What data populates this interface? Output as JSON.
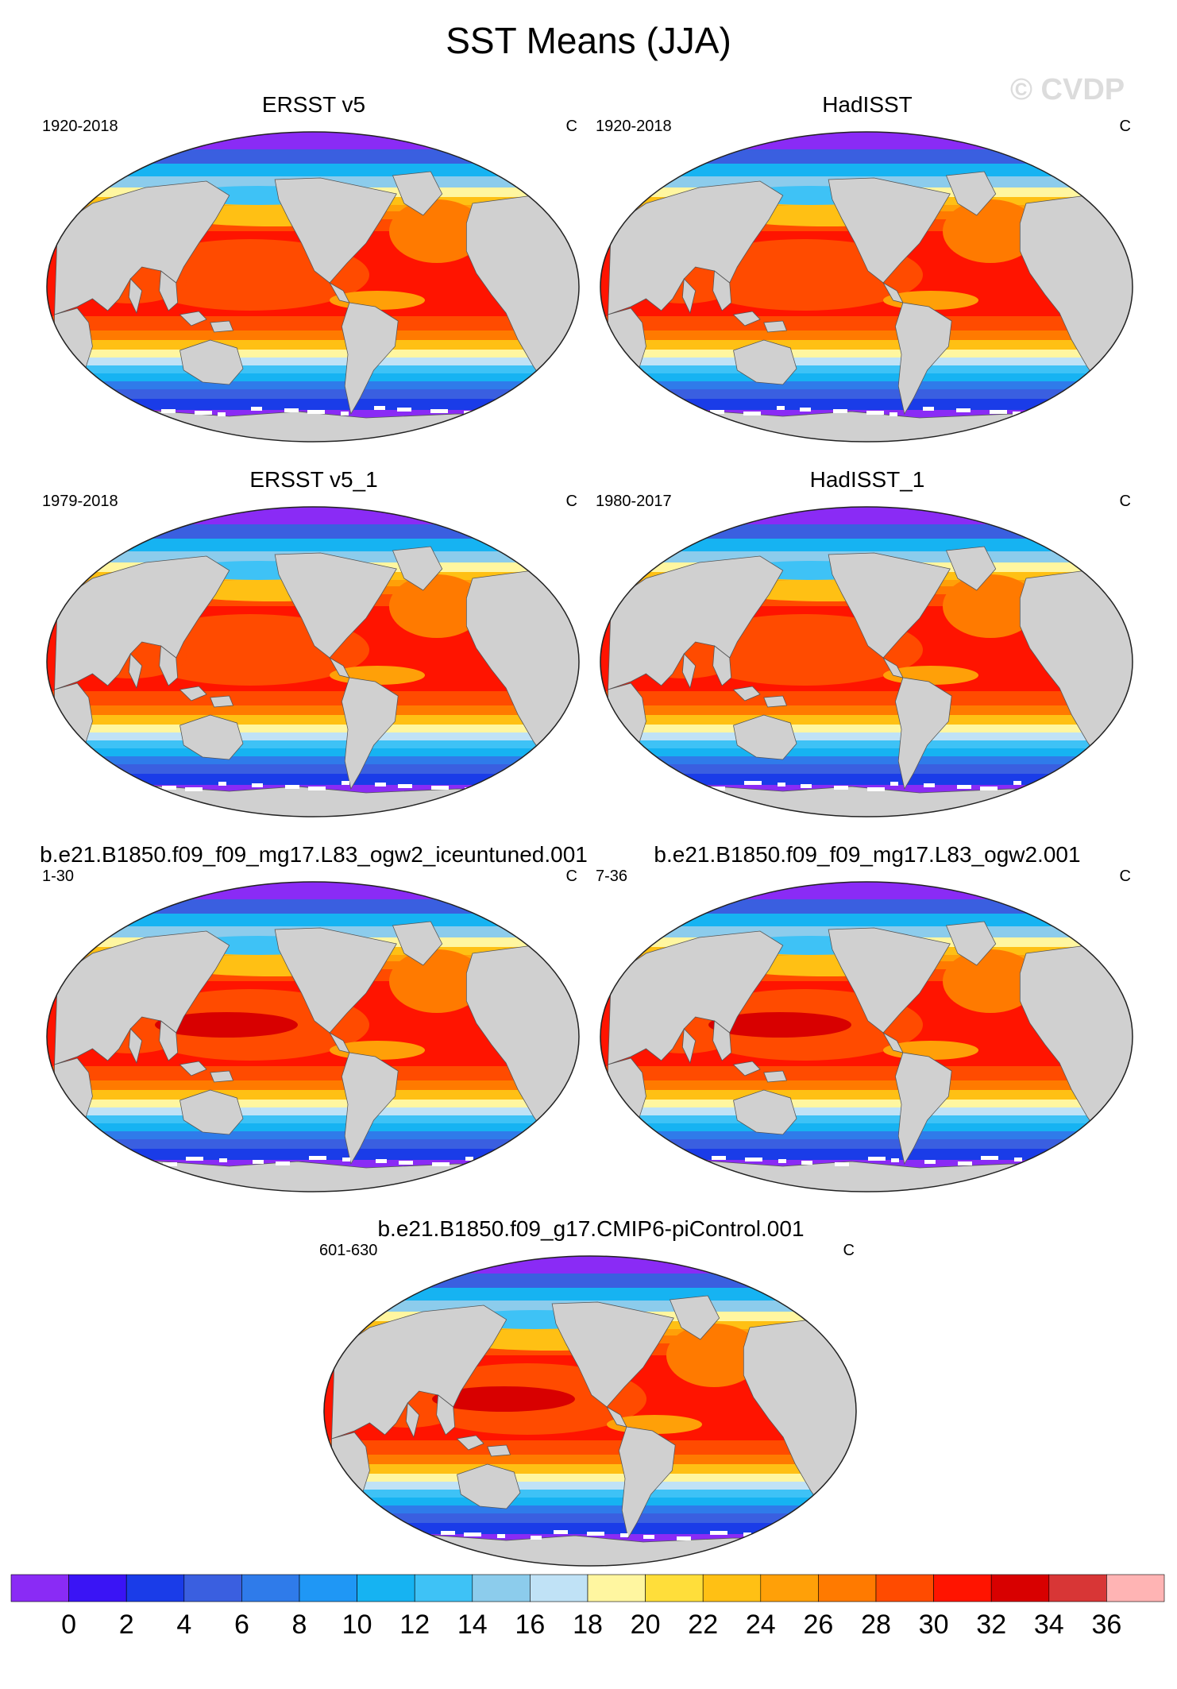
{
  "figure": {
    "title": "SST Means (JJA)",
    "watermark": "© CVDP"
  },
  "panels": [
    {
      "title": "ERSST v5",
      "years": "1920-2018",
      "units": "C",
      "variant": 0
    },
    {
      "title": "HadISST",
      "years": "1920-2018",
      "units": "C",
      "variant": 1
    },
    {
      "title": "ERSST v5_1",
      "years": "1979-2018",
      "units": "C",
      "variant": 0
    },
    {
      "title": "HadISST_1",
      "years": "1980-2017",
      "units": "C",
      "variant": 1
    },
    {
      "title": "b.e21.B1850.f09_f09_mg17.L83_ogw2_iceuntuned.001",
      "years": "1-30",
      "units": "C",
      "variant": 2
    },
    {
      "title": "b.e21.B1850.f09_f09_mg17.L83_ogw2.001",
      "years": "7-36",
      "units": "C",
      "variant": 2
    },
    {
      "title": "b.e21.B1850.f09_g17.CMIP6-piControl.001",
      "years": "601-630",
      "units": "C",
      "variant": 3
    }
  ],
  "colorbar": {
    "colors": [
      "#8a2bf5",
      "#3a14f5",
      "#1a3ce8",
      "#3a5fe0",
      "#2f7bea",
      "#1f97f5",
      "#16b3f2",
      "#3ec2f6",
      "#8cccec",
      "#c0e2f6",
      "#fff6a0",
      "#ffde3a",
      "#ffc014",
      "#ffa008",
      "#ff7a00",
      "#ff4b00",
      "#ff1400",
      "#d80000",
      "#d83636",
      "#ffb4b4"
    ],
    "labels": [
      "0",
      "2",
      "4",
      "6",
      "8",
      "10",
      "12",
      "14",
      "16",
      "18",
      "20",
      "22",
      "24",
      "26",
      "28",
      "30",
      "32",
      "34",
      "36"
    ]
  },
  "map": {
    "land_color": "#d0d0d0",
    "ice_color": "#ffffff"
  }
}
